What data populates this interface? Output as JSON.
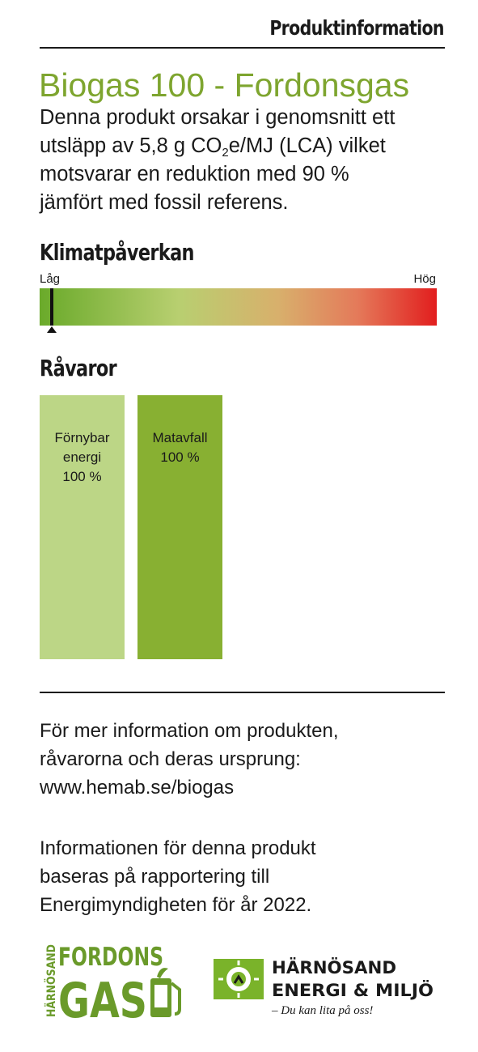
{
  "header": {
    "label": "Produktinformation"
  },
  "product": {
    "title": "Biogas 100 - Fordonsgas",
    "intro_lines": [
      {
        "pre": "Denna produkt orsakar i genomsnitt ett"
      },
      {
        "pre": "utsläpp av 5,8 g CO",
        "sub": "2",
        "post": "e/MJ (LCA) vilket"
      },
      {
        "pre": "motsvarar  en reduktion med 90 %"
      },
      {
        "pre": "jämfört med fossil referens."
      }
    ]
  },
  "climate": {
    "heading": "Klimatpåverkan",
    "low_label": "Låg",
    "high_label": "Hög",
    "indicator_level": 0.03,
    "colors": {
      "low": "#6aaa2a",
      "mid": "#d8b06c",
      "high": "#e21e1e"
    }
  },
  "raw_materials": {
    "heading": "Råvaror",
    "items": [
      {
        "lines": [
          "Förnybar",
          "energi",
          "100 %"
        ],
        "share": 100,
        "color": "#bcd686"
      },
      {
        "lines": [
          "Matavfall",
          "100 %"
        ],
        "share": 100,
        "color": "#88b032"
      }
    ]
  },
  "info": {
    "block1": [
      "För mer information om produkten,",
      "råvarorna och deras ursprung:",
      "www.hemab.se/biogas"
    ],
    "block2": [
      "Informationen för denna produkt",
      "baseras på rapportering till",
      "Energimyndigheten för år 2022."
    ]
  },
  "logos": {
    "fordonsgas": {
      "vertical": "HÄRNÖSAND",
      "top": "FORDONS",
      "bottom": "GAS",
      "icon": "fuel-pump-icon"
    },
    "hemab": {
      "line1": "HÄRNÖSAND",
      "line2": "ENERGI & MILJÖ",
      "slogan": "– Du kan lita på oss!",
      "icon": "sun-recycle-icon"
    }
  },
  "colors": {
    "accent": "#7ea52f",
    "text": "#1a1a1a",
    "dark_green": "#88b032",
    "light_green": "#bcd686"
  }
}
